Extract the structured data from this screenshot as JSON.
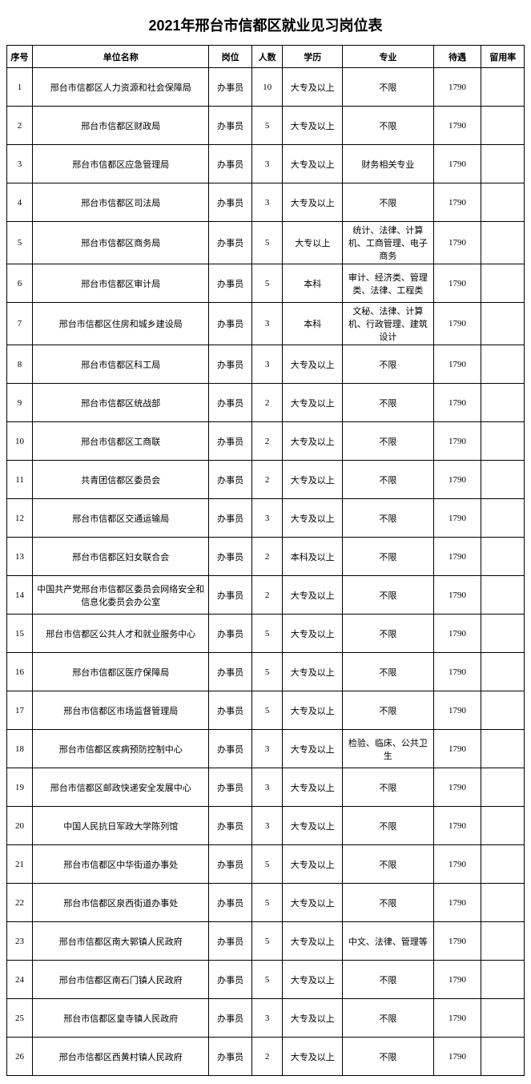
{
  "title": "2021年邢台市信都区就业见习岗位表",
  "columns": [
    "序号",
    "单位名称",
    "岗位",
    "人数",
    "学历",
    "专业",
    "待遇",
    "留用率"
  ],
  "rows": [
    {
      "seq": "1",
      "org": "邢台市信都区人力资源和社会保障局",
      "pos": "办事员",
      "cnt": "10",
      "edu": "大专及以上",
      "maj": "不限",
      "sal": "1790",
      "ret": ""
    },
    {
      "seq": "2",
      "org": "邢台市信都区财政局",
      "pos": "办事员",
      "cnt": "5",
      "edu": "大专及以上",
      "maj": "不限",
      "sal": "1790",
      "ret": ""
    },
    {
      "seq": "3",
      "org": "邢台市信都区应急管理局",
      "pos": "办事员",
      "cnt": "3",
      "edu": "大专及以上",
      "maj": "财务相关专业",
      "sal": "1790",
      "ret": ""
    },
    {
      "seq": "4",
      "org": "邢台市信都区司法局",
      "pos": "办事员",
      "cnt": "3",
      "edu": "大专及以上",
      "maj": "不限",
      "sal": "1790",
      "ret": ""
    },
    {
      "seq": "5",
      "org": "邢台市信都区商务局",
      "pos": "办事员",
      "cnt": "5",
      "edu": "大专以上",
      "maj": "统计、法律、计算机、工商管理、电子商务",
      "sal": "1790",
      "ret": ""
    },
    {
      "seq": "6",
      "org": "邢台市信都区审计局",
      "pos": "办事员",
      "cnt": "5",
      "edu": "本科",
      "maj": "审计、经济类、管理类、法律、工程类",
      "sal": "1790",
      "ret": ""
    },
    {
      "seq": "7",
      "org": "邢台市信都区住房和城乡建设局",
      "pos": "办事员",
      "cnt": "3",
      "edu": "本科",
      "maj": "文秘、法律、计算机、行政管理、建筑设计",
      "sal": "1790",
      "ret": ""
    },
    {
      "seq": "8",
      "org": "邢台市信都区科工局",
      "pos": "办事员",
      "cnt": "3",
      "edu": "大专及以上",
      "maj": "不限",
      "sal": "1790",
      "ret": ""
    },
    {
      "seq": "9",
      "org": "邢台市信都区统战部",
      "pos": "办事员",
      "cnt": "2",
      "edu": "大专及以上",
      "maj": "不限",
      "sal": "1790",
      "ret": ""
    },
    {
      "seq": "10",
      "org": "邢台市信都区工商联",
      "pos": "办事员",
      "cnt": "2",
      "edu": "大专及以上",
      "maj": "不限",
      "sal": "1790",
      "ret": ""
    },
    {
      "seq": "11",
      "org": "共青团信都区委员会",
      "pos": "办事员",
      "cnt": "2",
      "edu": "大专及以上",
      "maj": "不限",
      "sal": "1790",
      "ret": ""
    },
    {
      "seq": "12",
      "org": "邢台市信都区交通运输局",
      "pos": "办事员",
      "cnt": "3",
      "edu": "大专及以上",
      "maj": "不限",
      "sal": "1790",
      "ret": ""
    },
    {
      "seq": "13",
      "org": "邢台市信都区妇女联合会",
      "pos": "办事员",
      "cnt": "2",
      "edu": "本科及以上",
      "maj": "不限",
      "sal": "1790",
      "ret": ""
    },
    {
      "seq": "14",
      "org": "中国共产党邢台市信都区委员会网络安全和信息化委员会办公室",
      "pos": "办事员",
      "cnt": "2",
      "edu": "大专及以上",
      "maj": "不限",
      "sal": "1790",
      "ret": ""
    },
    {
      "seq": "15",
      "org": "邢台市信都区公共人才和就业服务中心",
      "pos": "办事员",
      "cnt": "5",
      "edu": "大专及以上",
      "maj": "不限",
      "sal": "1790",
      "ret": ""
    },
    {
      "seq": "16",
      "org": "邢台市信都区医疗保障局",
      "pos": "办事员",
      "cnt": "5",
      "edu": "大专及以上",
      "maj": "不限",
      "sal": "1790",
      "ret": ""
    },
    {
      "seq": "17",
      "org": "邢台市信都区市场监督管理局",
      "pos": "办事员",
      "cnt": "5",
      "edu": "大专及以上",
      "maj": "不限",
      "sal": "1790",
      "ret": ""
    },
    {
      "seq": "18",
      "org": "邢台市信都区疾病预防控制中心",
      "pos": "办事员",
      "cnt": "3",
      "edu": "大专及以上",
      "maj": "检验、临床、公共卫生",
      "sal": "1790",
      "ret": ""
    },
    {
      "seq": "19",
      "org": "邢台市信都区邮政快递安全发展中心",
      "pos": "办事员",
      "cnt": "3",
      "edu": "大专及以上",
      "maj": "不限",
      "sal": "1790",
      "ret": ""
    },
    {
      "seq": "20",
      "org": "中国人民抗日军政大学陈列馆",
      "pos": "办事员",
      "cnt": "3",
      "edu": "大专及以上",
      "maj": "不限",
      "sal": "1790",
      "ret": ""
    },
    {
      "seq": "21",
      "org": "邢台市信都区中华街道办事处",
      "pos": "办事员",
      "cnt": "5",
      "edu": "大专及以上",
      "maj": "不限",
      "sal": "1790",
      "ret": ""
    },
    {
      "seq": "22",
      "org": "邢台市信都区泉西街道办事处",
      "pos": "办事员",
      "cnt": "5",
      "edu": "大专及以上",
      "maj": "不限",
      "sal": "1790",
      "ret": ""
    },
    {
      "seq": "23",
      "org": "邢台市信都区南大郭镇人民政府",
      "pos": "办事员",
      "cnt": "5",
      "edu": "大专及以上",
      "maj": "中文、法律、管理等",
      "sal": "1790",
      "ret": ""
    },
    {
      "seq": "24",
      "org": "邢台市信都区南石门镇人民政府",
      "pos": "办事员",
      "cnt": "5",
      "edu": "大专及以上",
      "maj": "不限",
      "sal": "1790",
      "ret": ""
    },
    {
      "seq": "25",
      "org": "邢台市信都区皇寺镇人民政府",
      "pos": "办事员",
      "cnt": "3",
      "edu": "大专及以上",
      "maj": "不限",
      "sal": "1790",
      "ret": ""
    },
    {
      "seq": "26",
      "org": "邢台市信都区西黄村镇人民政府",
      "pos": "办事员",
      "cnt": "2",
      "edu": "大专及以上",
      "maj": "不限",
      "sal": "1790",
      "ret": ""
    }
  ]
}
